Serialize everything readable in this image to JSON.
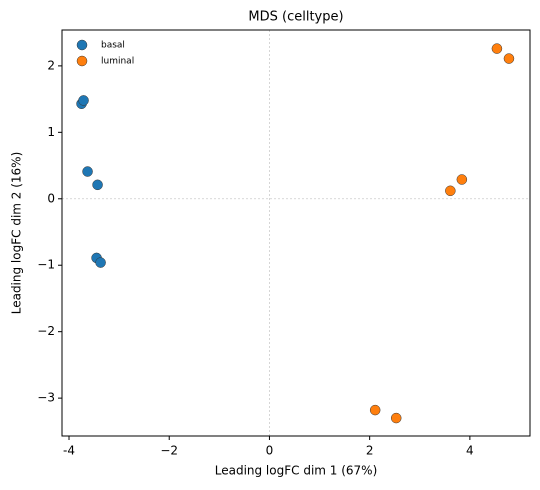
{
  "chart_data": {
    "type": "scatter",
    "title": "MDS (celltype)",
    "x_label": "Leading logFC dim 1 (67%)",
    "y_label": "Leading logFC dim 2 (16%)",
    "xlim": [
      -4.14,
      5.2
    ],
    "ylim": [
      -3.57,
      2.54
    ],
    "xticks": [
      -4,
      {
        "value": -2,
        "label": "−2"
      },
      0,
      2,
      4
    ],
    "yticks": [
      {
        "value": -3,
        "label": "−3"
      },
      {
        "value": -2,
        "label": "−2"
      },
      {
        "value": -1,
        "label": "−1"
      },
      0,
      1,
      2
    ],
    "zero_lines": true,
    "legend": "upper left",
    "series": [
      {
        "name": "basal",
        "color": "#1f77b4",
        "x": [
          -3.75,
          -3.71,
          -3.63,
          -3.43,
          -3.45,
          -3.37
        ],
        "values": [
          1.43,
          1.48,
          0.41,
          0.21,
          -0.89,
          -0.96
        ]
      },
      {
        "name": "luminal",
        "color": "#ff7f0e",
        "x": [
          4.54,
          4.78,
          3.61,
          3.84,
          2.11,
          2.53
        ],
        "values": [
          2.26,
          2.11,
          0.12,
          0.29,
          -3.18,
          -3.3
        ]
      }
    ]
  }
}
